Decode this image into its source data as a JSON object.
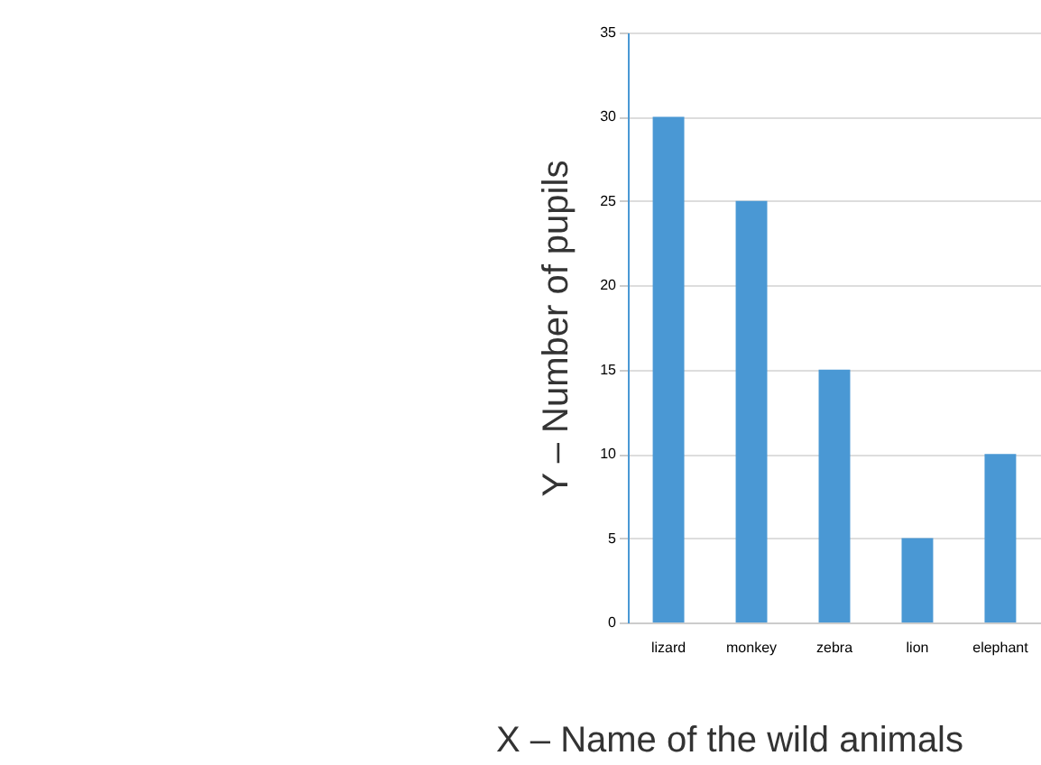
{
  "chart_data": {
    "type": "bar",
    "xlabel": "X – Name of the wild animals",
    "ylabel": "Y – Number of pupils",
    "categories": [
      "lizard",
      "monkey",
      "zebra",
      "lion",
      "elephant"
    ],
    "values": [
      30,
      25,
      15,
      5,
      10
    ],
    "color": "#4a98d4",
    "ylim": [
      0,
      35
    ],
    "yticks": [
      0,
      5,
      10,
      15,
      20,
      25,
      30,
      35
    ],
    "grid": "y"
  }
}
